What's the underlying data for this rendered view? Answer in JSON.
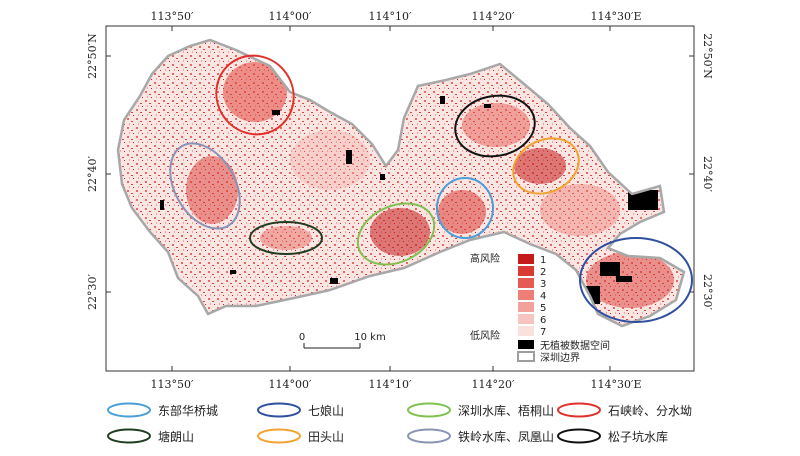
{
  "axes": {
    "top": [
      "113°50′",
      "114°00′",
      "114°10′",
      "114°20′",
      "114°30′E"
    ],
    "bottom": [
      "113°50′",
      "114°00′",
      "114°10′",
      "114°20′",
      "114°30′E"
    ],
    "left": [
      "22°50′N",
      "22°40′",
      "22°30′"
    ],
    "right": [
      "22°50′N",
      "22°40′",
      "22°30′"
    ]
  },
  "risk_legend": {
    "high_label": "高风险",
    "low_label": "低风险",
    "levels": [
      "1",
      "2",
      "3",
      "4",
      "5",
      "6",
      "7"
    ],
    "colors": [
      "#c51b1b",
      "#d93a34",
      "#e55a52",
      "#ee7f76",
      "#f3a29b",
      "#f7c4bf",
      "#fbe1de"
    ],
    "nodata_label": "无植被数据空间",
    "nodata_color": "#000000",
    "boundary_label": "深圳边界",
    "boundary_color": "#9e9e9e"
  },
  "scale_bar": {
    "zero": "0",
    "end": "10 km"
  },
  "regions": [
    {
      "label": "东部华桥城",
      "color": "#4a9fd6"
    },
    {
      "label": "七娘山",
      "color": "#2f4f9f"
    },
    {
      "label": "深圳水库、梧桐山",
      "color": "#7fc04f"
    },
    {
      "label": "石峡岭、分水坳",
      "color": "#e0302a"
    },
    {
      "label": "塘朗山",
      "color": "#1f3d1f"
    },
    {
      "label": "田头山",
      "color": "#f0a331"
    },
    {
      "label": "铁岭水库、凤凰山",
      "color": "#8a93b6"
    },
    {
      "label": "松子坑水库",
      "color": "#111111"
    }
  ]
}
